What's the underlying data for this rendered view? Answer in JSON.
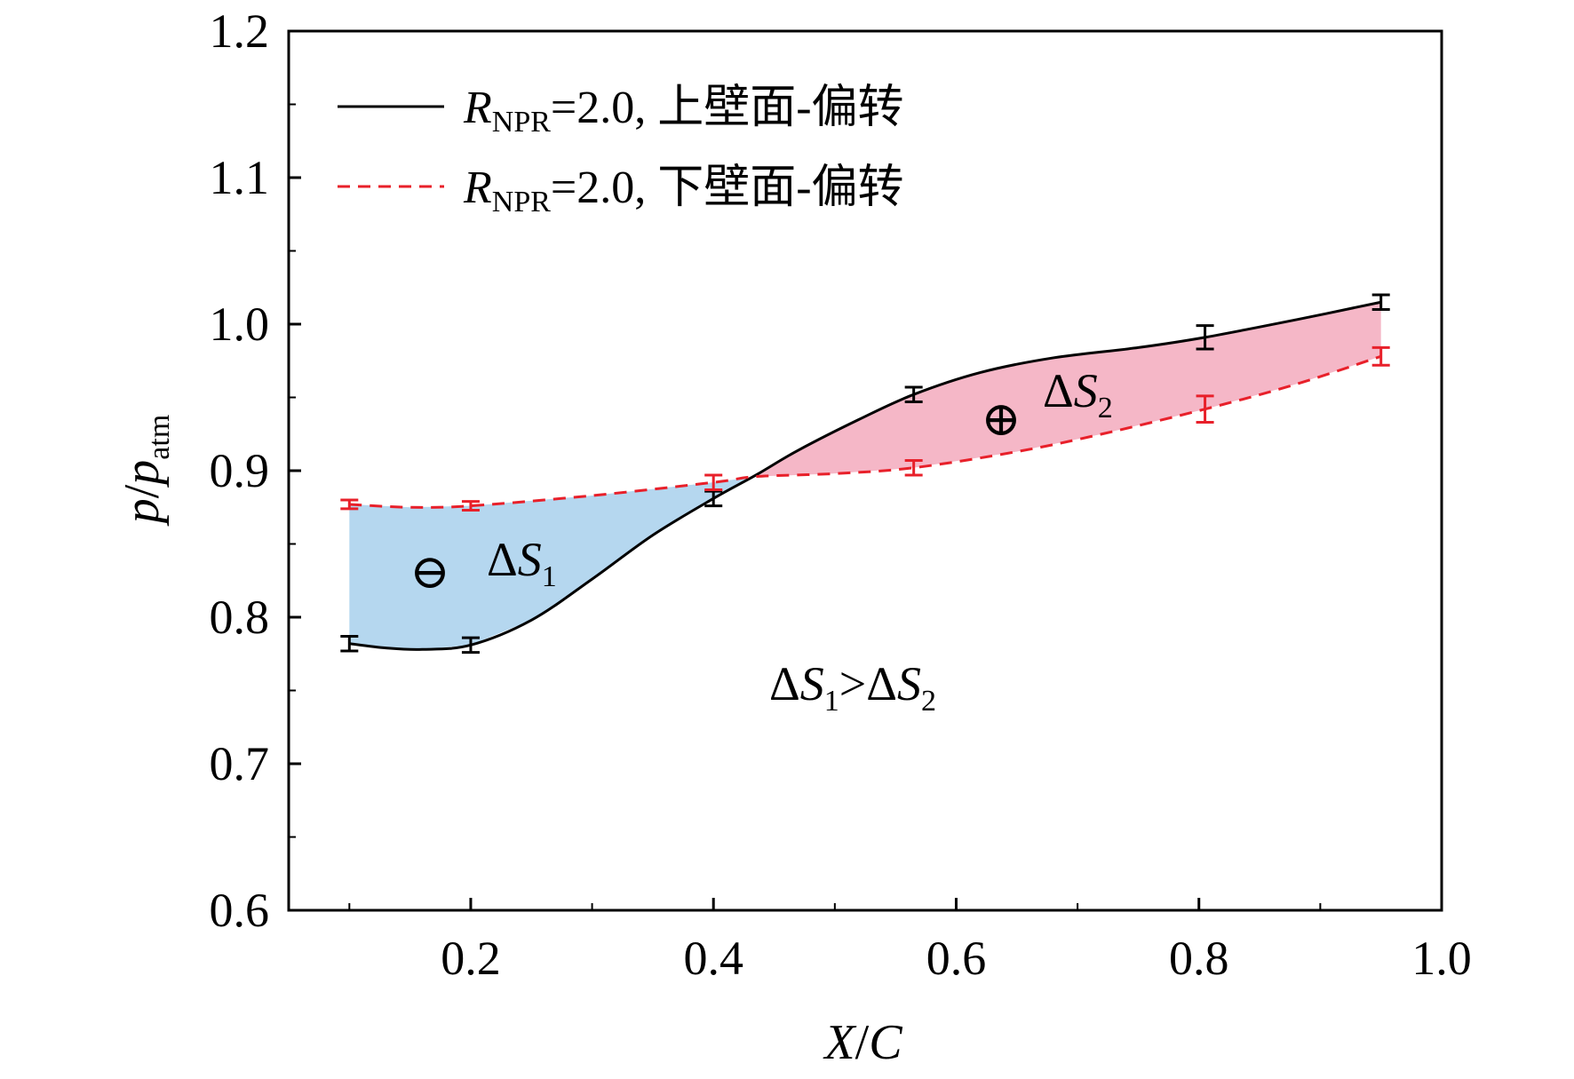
{
  "chart_data": {
    "type": "line",
    "xlabel_var1": "X",
    "xlabel_sep": "/",
    "xlabel_var2": "C",
    "ylabel_var": "p",
    "ylabel_sep": "/",
    "ylabel_var2": "p",
    "ylabel_sub": "atm",
    "xlim": [
      0.05,
      1.0
    ],
    "ylim": [
      0.6,
      1.2
    ],
    "xticks": [
      "0.2",
      "0.4",
      "0.6",
      "0.8",
      "1.0"
    ],
    "xtick_values": [
      0.2,
      0.4,
      0.6,
      0.8,
      1.0
    ],
    "yticks": [
      "0.6",
      "0.7",
      "0.8",
      "0.9",
      "1.0",
      "1.1",
      "1.2"
    ],
    "ytick_values": [
      0.6,
      0.7,
      0.8,
      0.9,
      1.0,
      1.1,
      1.2
    ],
    "series": [
      {
        "legend_r": "R",
        "legend_sub": "NPR",
        "legend_rest": "=2.0, 上壁面-偏转",
        "style": "solid",
        "color": "#000000",
        "x": [
          0.1,
          0.2,
          0.4,
          0.565,
          0.805,
          0.95
        ],
        "y": [
          0.782,
          0.781,
          0.881,
          0.952,
          0.991,
          1.015
        ],
        "err": [
          0.005,
          0.005,
          0.005,
          0.005,
          0.008,
          0.005
        ],
        "curve_x": [
          0.1,
          0.13,
          0.16,
          0.2,
          0.25,
          0.3,
          0.35,
          0.4,
          0.435,
          0.47,
          0.52,
          0.565,
          0.62,
          0.68,
          0.75,
          0.805,
          0.88,
          0.95
        ],
        "curve_y": [
          0.782,
          0.779,
          0.778,
          0.781,
          0.798,
          0.826,
          0.856,
          0.881,
          0.897,
          0.914,
          0.935,
          0.952,
          0.967,
          0.977,
          0.984,
          0.991,
          1.003,
          1.015
        ]
      },
      {
        "legend_r": "R",
        "legend_sub": "NPR",
        "legend_rest": "=2.0, 下壁面-偏转",
        "style": "dashed",
        "color": "#e8202a",
        "x": [
          0.1,
          0.2,
          0.4,
          0.565,
          0.805,
          0.95
        ],
        "y": [
          0.877,
          0.876,
          0.892,
          0.902,
          0.942,
          0.978
        ],
        "err": [
          0.003,
          0.003,
          0.005,
          0.005,
          0.009,
          0.006
        ],
        "curve_x": [
          0.1,
          0.15,
          0.2,
          0.3,
          0.4,
          0.435,
          0.5,
          0.565,
          0.65,
          0.72,
          0.805,
          0.88,
          0.95
        ],
        "curve_y": [
          0.877,
          0.875,
          0.876,
          0.883,
          0.892,
          0.896,
          0.898,
          0.902,
          0.913,
          0.925,
          0.942,
          0.959,
          0.978
        ]
      }
    ],
    "crossing_x": 0.435,
    "region_colors": [
      "#b5d7ef",
      "#f5b7c7"
    ],
    "annotations": {
      "s1_delta": "Δ",
      "s1_var": "S",
      "s1_sub": "1",
      "s1_sign": "⊖",
      "s2_delta": "Δ",
      "s2_var": "S",
      "s2_sub": "2",
      "s2_sign": "⊕",
      "compare_a_delta": "Δ",
      "compare_a_var": "S",
      "compare_a_sub": "1",
      "compare_op": ">",
      "compare_b_delta": "Δ",
      "compare_b_var": "S",
      "compare_b_sub": "2"
    }
  }
}
